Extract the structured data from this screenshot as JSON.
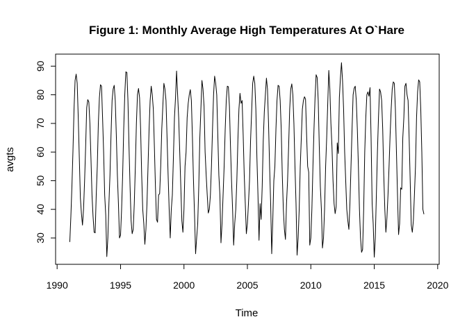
{
  "chart_data": {
    "type": "line",
    "title": "Figure 1: Monthly Average High Temperatures At O`Hare",
    "xlabel": "Time",
    "ylabel": "avgts",
    "xlim": [
      1991,
      2019
    ],
    "ylim": [
      23.5,
      91.5
    ],
    "x_ticks": [
      1990,
      1995,
      2000,
      2005,
      2010,
      2015,
      2020
    ],
    "y_ticks": [
      30,
      40,
      50,
      60,
      70,
      80,
      90
    ],
    "grid": false,
    "legend": "none",
    "line_color": "#000000",
    "series": [
      {
        "start_year": 1991,
        "frequency": 12,
        "values": [
          28.6,
          37.5,
          48.0,
          60.5,
          75.0,
          85.0,
          87.2,
          84.0,
          72.0,
          58.0,
          44.0,
          38.5,
          34.5,
          40.0,
          50.0,
          62.0,
          75.5,
          78.3,
          77.5,
          70.0,
          58.0,
          45.0,
          37.5,
          32.0,
          31.8,
          45.0,
          55.0,
          70.0,
          79.0,
          83.5,
          83.0,
          72.0,
          60.0,
          45.0,
          38.0,
          23.5,
          30.0,
          42.0,
          52.0,
          66.0,
          78.0,
          82.0,
          83.3,
          78.0,
          66.0,
          52.0,
          42.0,
          30.0,
          31.0,
          40.0,
          52.0,
          68.0,
          80.0,
          88.0,
          87.8,
          78.0,
          62.0,
          48.0,
          36.0,
          31.5,
          33.0,
          42.0,
          55.0,
          70.0,
          80.0,
          82.2,
          79.0,
          68.0,
          52.0,
          40.0,
          35.0,
          27.8,
          33.0,
          42.0,
          55.0,
          68.0,
          78.0,
          83.0,
          80.0,
          75.0,
          62.0,
          48.0,
          36.5,
          35.5,
          45.0,
          45.5,
          55.0,
          68.0,
          76.0,
          84.0,
          82.0,
          78.0,
          65.0,
          52.0,
          40.0,
          30.0,
          40.0,
          45.0,
          58.0,
          72.0,
          79.0,
          88.3,
          80.0,
          72.0,
          60.0,
          48.0,
          36.0,
          32.0,
          40.0,
          55.0,
          60.0,
          72.0,
          77.0,
          80.0,
          81.8,
          78.0,
          65.0,
          50.0,
          38.0,
          24.5,
          30.0,
          35.0,
          48.0,
          65.0,
          75.0,
          85.0,
          82.0,
          76.0,
          60.0,
          52.0,
          45.0,
          38.7,
          40.0,
          45.0,
          55.0,
          68.0,
          80.0,
          86.5,
          84.0,
          80.0,
          66.0,
          52.0,
          45.0,
          28.3,
          35.0,
          45.0,
          55.0,
          68.0,
          78.0,
          83.0,
          82.8,
          76.0,
          62.0,
          50.0,
          40.0,
          27.5,
          35.0,
          40.0,
          50.0,
          64.0,
          75.0,
          80.5,
          77.0,
          78.0,
          66.0,
          52.0,
          42.0,
          31.5,
          35.0,
          42.0,
          50.0,
          64.0,
          74.0,
          84.0,
          86.5,
          84.0,
          75.0,
          58.0,
          45.0,
          29.2,
          42.0,
          36.5,
          48.0,
          64.0,
          74.0,
          80.0,
          85.8,
          82.0,
          70.0,
          55.0,
          42.0,
          24.5,
          36.0,
          50.0,
          55.0,
          68.0,
          78.0,
          83.3,
          83.0,
          78.0,
          68.0,
          52.0,
          40.0,
          33.0,
          29.5,
          42.0,
          50.0,
          62.0,
          75.0,
          82.0,
          83.8,
          80.0,
          70.0,
          55.0,
          42.0,
          24.0,
          30.0,
          40.0,
          55.0,
          65.0,
          75.0,
          78.0,
          79.3,
          78.5,
          66.0,
          55.0,
          53.0,
          27.5,
          30.0,
          40.0,
          55.0,
          68.0,
          79.0,
          87.0,
          86.0,
          78.0,
          62.0,
          48.0,
          40.0,
          26.5,
          30.0,
          40.0,
          55.0,
          65.0,
          77.0,
          88.5,
          82.0,
          70.0,
          62.0,
          50.0,
          42.0,
          38.5,
          41.0,
          63.2,
          59.5,
          79.0,
          86.0,
          91.2,
          85.0,
          75.0,
          60.0,
          50.0,
          40.0,
          36.0,
          33.0,
          42.0,
          55.0,
          68.0,
          80.0,
          82.3,
          83.0,
          78.0,
          68.0,
          55.0,
          40.0,
          30.0,
          25.0,
          26.0,
          40.0,
          60.0,
          72.0,
          80.0,
          81.0,
          79.5,
          82.5,
          65.0,
          42.0,
          35.0,
          23.3,
          30.0,
          45.0,
          60.0,
          72.0,
          82.0,
          81.0,
          78.0,
          68.0,
          52.0,
          40.0,
          32.0,
          37.0,
          45.0,
          55.0,
          66.0,
          75.0,
          82.0,
          84.5,
          84.0,
          75.0,
          60.0,
          45.0,
          31.2,
          35.0,
          47.5,
          47.0,
          65.0,
          72.0,
          83.0,
          84.0,
          80.0,
          78.0,
          65.0,
          50.0,
          34.5,
          32.0,
          36.0,
          45.0,
          55.0,
          72.0,
          81.0,
          85.2,
          84.5,
          75.0,
          60.0,
          40.0,
          38.3
        ]
      }
    ]
  }
}
